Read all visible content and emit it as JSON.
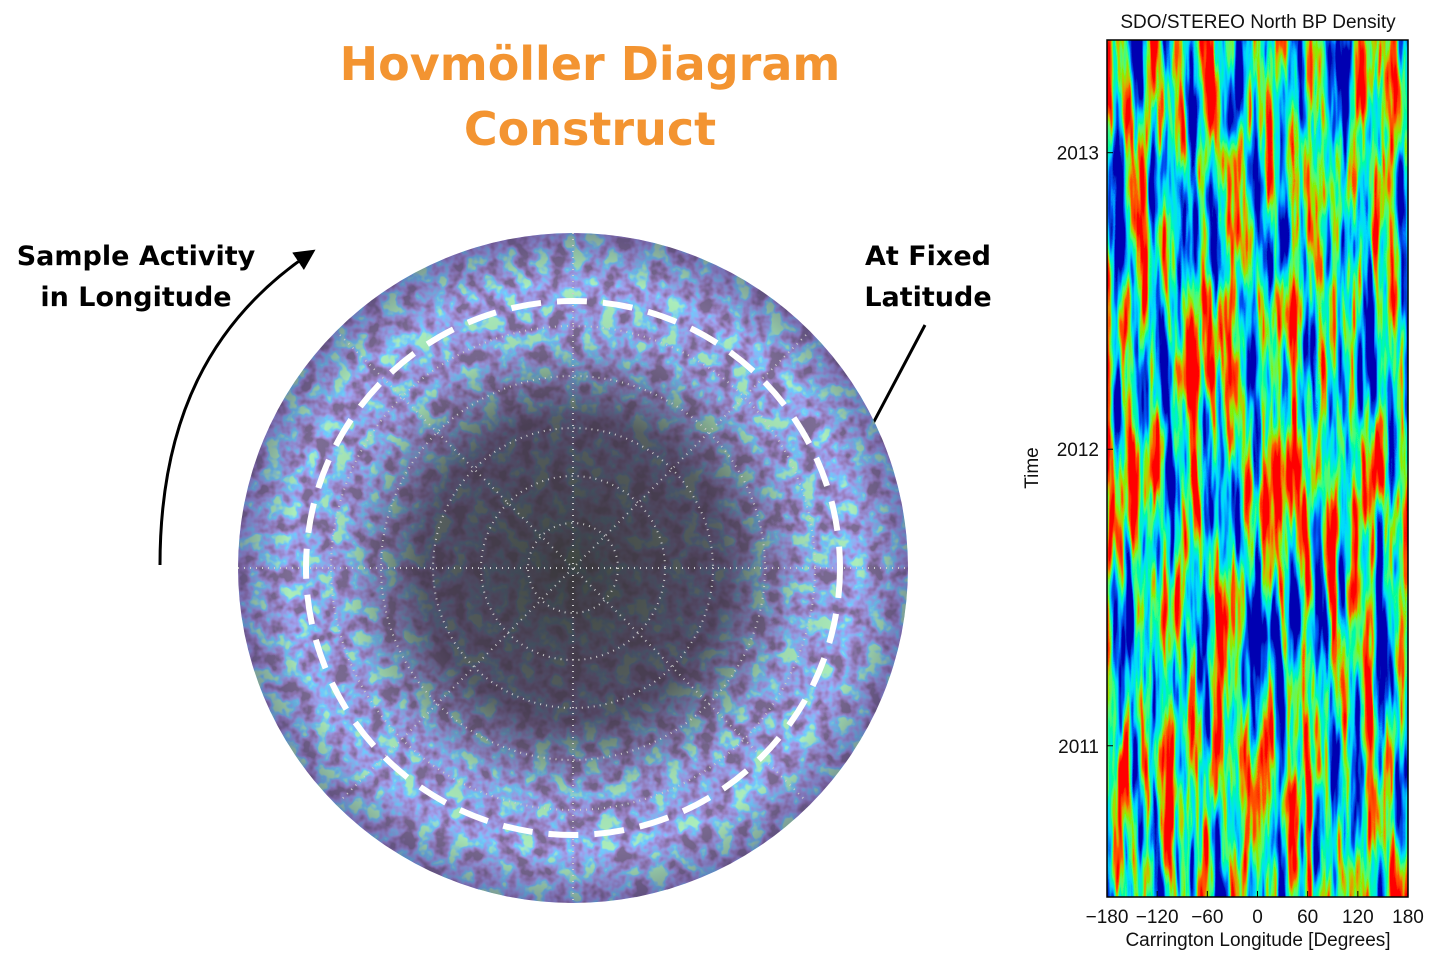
{
  "title": {
    "lines": [
      "Hovmöller Diagram",
      "Construct"
    ]
  },
  "left_annotation": {
    "lines": [
      "Sample Activity",
      "in Longitude"
    ]
  },
  "right_annotation": {
    "lines": [
      "At Fixed",
      "Latitude"
    ]
  },
  "hovmoller": {
    "title": "SDO/STEREO North BP Density",
    "x_label": "Carrington Longitude [Degrees]",
    "y_label": "Time",
    "xlim": [
      -180,
      180
    ],
    "xticks": [
      {
        "value": -180,
        "label": "−180"
      },
      {
        "value": -120,
        "label": "−120"
      },
      {
        "value": -60,
        "label": "−60"
      },
      0,
      60,
      120,
      180
    ],
    "ylim": [
      2010.49,
      2013.38
    ],
    "yticks": [
      2011,
      2012,
      2013
    ]
  }
}
